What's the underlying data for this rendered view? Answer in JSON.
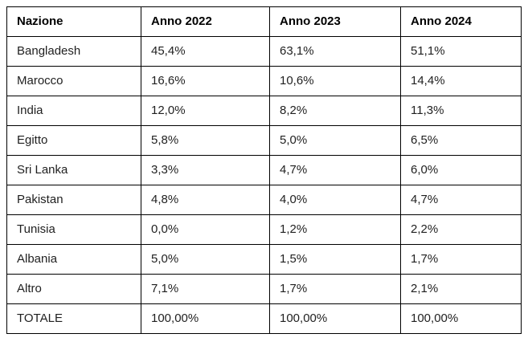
{
  "chart_data": {
    "type": "table",
    "columns": [
      "Nazione",
      "Anno 2022",
      "Anno 2023",
      "Anno 2024"
    ],
    "rows": [
      [
        "Bangladesh",
        "45,4%",
        "63,1%",
        "51,1%"
      ],
      [
        "Marocco",
        "16,6%",
        "10,6%",
        "14,4%"
      ],
      [
        "India",
        "12,0%",
        "8,2%",
        "11,3%"
      ],
      [
        "Egitto",
        "5,8%",
        "5,0%",
        "6,5%"
      ],
      [
        "Sri Lanka",
        "3,3%",
        "4,7%",
        "6,0%"
      ],
      [
        "Pakistan",
        "4,8%",
        "4,0%",
        "4,7%"
      ],
      [
        "Tunisia",
        "0,0%",
        "1,2%",
        "2,2%"
      ],
      [
        "Albania",
        "5,0%",
        "1,5%",
        "1,7%"
      ],
      [
        "Altro",
        "7,1%",
        "1,7%",
        "2,1%"
      ],
      [
        "TOTALE",
        "100,00%",
        "100,00%",
        "100,00%"
      ]
    ]
  },
  "colors": {
    "background": "#ffffff",
    "border": "#000000",
    "header_text": "#000000",
    "cell_text": "#1f1f1f"
  }
}
